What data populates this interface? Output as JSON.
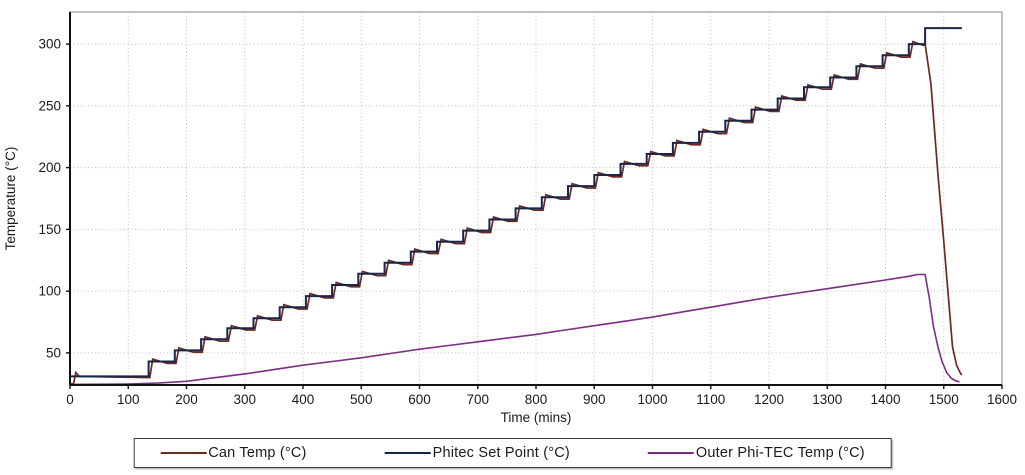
{
  "chart_data": {
    "type": "line",
    "title": "",
    "xlabel": "Time (mins)",
    "ylabel": "Temperature (°C)",
    "xlim": [
      0,
      1600
    ],
    "ylim": [
      24,
      326
    ],
    "xticks": [
      0,
      100,
      200,
      300,
      400,
      500,
      600,
      700,
      800,
      900,
      1000,
      1100,
      1200,
      1300,
      1400,
      1500,
      1600
    ],
    "yticks": [
      50,
      100,
      150,
      200,
      250,
      300
    ],
    "grid": true,
    "grid_style": "dotted",
    "legend_position": "bottom",
    "series": [
      {
        "name": "Can Temp (°C)",
        "color": "#6b2a24",
        "width": 1.7,
        "points": [
          [
            0,
            25
          ],
          [
            6,
            25
          ],
          [
            10,
            34
          ],
          [
            16,
            31
          ],
          [
            137,
            30
          ],
          [
            142,
            45
          ],
          [
            167,
            41.5
          ],
          [
            182,
            41.5
          ],
          [
            187,
            54
          ],
          [
            212,
            50.5
          ],
          [
            227,
            50.5
          ],
          [
            232,
            63
          ],
          [
            257,
            59.5
          ],
          [
            272,
            59.5
          ],
          [
            277,
            72
          ],
          [
            302,
            68.5
          ],
          [
            317,
            68.5
          ],
          [
            322,
            80
          ],
          [
            347,
            76.5
          ],
          [
            362,
            76.5
          ],
          [
            367,
            89
          ],
          [
            392,
            85.5
          ],
          [
            407,
            85.5
          ],
          [
            412,
            98
          ],
          [
            437,
            94.5
          ],
          [
            452,
            94.5
          ],
          [
            457,
            107
          ],
          [
            482,
            103.5
          ],
          [
            497,
            103.5
          ],
          [
            502,
            116
          ],
          [
            527,
            112.5
          ],
          [
            542,
            112.5
          ],
          [
            547,
            125
          ],
          [
            572,
            121.5
          ],
          [
            587,
            121.5
          ],
          [
            592,
            134
          ],
          [
            617,
            130.5
          ],
          [
            632,
            130.5
          ],
          [
            637,
            142
          ],
          [
            662,
            138.5
          ],
          [
            677,
            138.5
          ],
          [
            682,
            151
          ],
          [
            707,
            147.5
          ],
          [
            722,
            147.5
          ],
          [
            727,
            160
          ],
          [
            752,
            156.5
          ],
          [
            767,
            156.5
          ],
          [
            772,
            169
          ],
          [
            797,
            165.5
          ],
          [
            812,
            165.5
          ],
          [
            817,
            178
          ],
          [
            842,
            174.5
          ],
          [
            857,
            174.5
          ],
          [
            862,
            187
          ],
          [
            887,
            183.5
          ],
          [
            902,
            183.5
          ],
          [
            907,
            196
          ],
          [
            932,
            192.5
          ],
          [
            947,
            192.5
          ],
          [
            952,
            205
          ],
          [
            977,
            201.5
          ],
          [
            992,
            201.5
          ],
          [
            997,
            213
          ],
          [
            1022,
            209.5
          ],
          [
            1037,
            209.5
          ],
          [
            1042,
            222
          ],
          [
            1067,
            218.5
          ],
          [
            1082,
            218.5
          ],
          [
            1087,
            231
          ],
          [
            1112,
            227.5
          ],
          [
            1127,
            227.5
          ],
          [
            1132,
            240
          ],
          [
            1157,
            236.5
          ],
          [
            1172,
            236.5
          ],
          [
            1177,
            249
          ],
          [
            1202,
            245.5
          ],
          [
            1217,
            245.5
          ],
          [
            1222,
            258
          ],
          [
            1247,
            254.5
          ],
          [
            1262,
            254.5
          ],
          [
            1267,
            267
          ],
          [
            1292,
            263.5
          ],
          [
            1307,
            263.5
          ],
          [
            1312,
            275
          ],
          [
            1337,
            271.5
          ],
          [
            1352,
            271.5
          ],
          [
            1357,
            284
          ],
          [
            1382,
            280.5
          ],
          [
            1397,
            280.5
          ],
          [
            1402,
            293
          ],
          [
            1427,
            289.5
          ],
          [
            1442,
            289.5
          ],
          [
            1447,
            302
          ],
          [
            1465,
            299
          ],
          [
            1468,
            300
          ],
          [
            1478,
            268
          ],
          [
            1490,
            195
          ],
          [
            1500,
            140
          ],
          [
            1508,
            95
          ],
          [
            1515,
            55
          ],
          [
            1522,
            40
          ],
          [
            1528,
            34
          ],
          [
            1531,
            32
          ]
        ]
      },
      {
        "name": "Phitec Set Point (°C)",
        "color": "#1b2547",
        "width": 2,
        "points": [
          [
            0,
            31
          ],
          [
            135,
            31
          ],
          [
            135,
            43
          ],
          [
            180,
            43
          ],
          [
            180,
            52
          ],
          [
            225,
            52
          ],
          [
            225,
            61
          ],
          [
            270,
            61
          ],
          [
            270,
            70
          ],
          [
            315,
            70
          ],
          [
            315,
            78
          ],
          [
            360,
            78
          ],
          [
            360,
            87
          ],
          [
            405,
            87
          ],
          [
            405,
            96
          ],
          [
            450,
            96
          ],
          [
            450,
            105
          ],
          [
            495,
            105
          ],
          [
            495,
            114
          ],
          [
            540,
            114
          ],
          [
            540,
            123
          ],
          [
            585,
            123
          ],
          [
            585,
            132
          ],
          [
            630,
            132
          ],
          [
            630,
            140
          ],
          [
            675,
            140
          ],
          [
            675,
            149
          ],
          [
            720,
            149
          ],
          [
            720,
            158
          ],
          [
            765,
            158
          ],
          [
            765,
            167
          ],
          [
            810,
            167
          ],
          [
            810,
            176
          ],
          [
            855,
            176
          ],
          [
            855,
            185
          ],
          [
            900,
            185
          ],
          [
            900,
            194
          ],
          [
            945,
            194
          ],
          [
            945,
            203
          ],
          [
            990,
            203
          ],
          [
            990,
            211
          ],
          [
            1035,
            211
          ],
          [
            1035,
            220
          ],
          [
            1080,
            220
          ],
          [
            1080,
            229
          ],
          [
            1125,
            229
          ],
          [
            1125,
            238
          ],
          [
            1170,
            238
          ],
          [
            1170,
            247
          ],
          [
            1215,
            247
          ],
          [
            1215,
            256
          ],
          [
            1260,
            256
          ],
          [
            1260,
            265
          ],
          [
            1305,
            265
          ],
          [
            1305,
            273
          ],
          [
            1350,
            273
          ],
          [
            1350,
            282
          ],
          [
            1395,
            282
          ],
          [
            1395,
            291
          ],
          [
            1440,
            291
          ],
          [
            1440,
            300
          ],
          [
            1468,
            300
          ],
          [
            1468,
            313
          ],
          [
            1531,
            313
          ]
        ]
      },
      {
        "name": "Outer Phi-TEC Temp (°C)",
        "color": "#7b2d83",
        "width": 1.6,
        "points": [
          [
            0,
            24.5
          ],
          [
            100,
            24.8
          ],
          [
            150,
            25.5
          ],
          [
            200,
            27
          ],
          [
            250,
            30
          ],
          [
            300,
            33
          ],
          [
            350,
            36.5
          ],
          [
            400,
            40
          ],
          [
            450,
            43
          ],
          [
            500,
            46
          ],
          [
            550,
            49.5
          ],
          [
            600,
            53
          ],
          [
            650,
            56
          ],
          [
            700,
            59
          ],
          [
            750,
            62
          ],
          [
            800,
            65
          ],
          [
            850,
            68.5
          ],
          [
            900,
            72
          ],
          [
            950,
            75.5
          ],
          [
            1000,
            79
          ],
          [
            1050,
            83
          ],
          [
            1100,
            87
          ],
          [
            1150,
            91
          ],
          [
            1200,
            95
          ],
          [
            1250,
            98.5
          ],
          [
            1300,
            102
          ],
          [
            1350,
            105.5
          ],
          [
            1400,
            109
          ],
          [
            1440,
            112
          ],
          [
            1455,
            113.5
          ],
          [
            1468,
            113.5
          ],
          [
            1475,
            95
          ],
          [
            1482,
            72
          ],
          [
            1490,
            55
          ],
          [
            1497,
            43
          ],
          [
            1505,
            34
          ],
          [
            1513,
            29.5
          ],
          [
            1520,
            27.5
          ],
          [
            1527,
            26.5
          ]
        ]
      }
    ],
    "colors": {
      "axis": "#111111",
      "grid": "#bdbdbd",
      "border": "#a8a8a8",
      "tick_text": "#1a1a1a"
    }
  }
}
